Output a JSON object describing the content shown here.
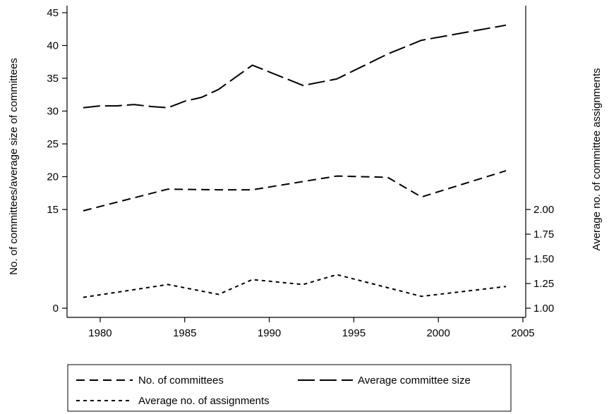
{
  "chart_data": {
    "type": "line",
    "x_axis": {
      "range": [
        1979,
        2005
      ],
      "ticks": [
        1980,
        1985,
        1990,
        1995,
        2000,
        2005
      ],
      "tick_labels": [
        "1980",
        "1985",
        "1990",
        "1995",
        "2000",
        "2005"
      ]
    },
    "y_left": {
      "label": "No. of committees/average size of committees",
      "ticks": [
        0,
        15,
        20,
        25,
        30,
        35,
        40,
        45
      ],
      "tick_labels": [
        "0",
        "15",
        "20",
        "25",
        "30",
        "35",
        "40",
        "45"
      ]
    },
    "y_right": {
      "label": "Average no. of committee assignments",
      "ticks": [
        1.0,
        1.25,
        1.5,
        1.75,
        2.0
      ],
      "tick_labels": [
        "1.00",
        "1.25",
        "1.50",
        "1.75",
        "2.00"
      ]
    },
    "series": [
      {
        "name": "No. of committees",
        "axis": "left",
        "style": "dash",
        "x": [
          1979,
          1984,
          1987,
          1989,
          1994,
          1997,
          1999,
          2004
        ],
        "y": [
          14.8,
          18.1,
          18.0,
          18.0,
          20.1,
          19.9,
          16.9,
          20.9
        ]
      },
      {
        "name": "Average committee size",
        "axis": "left",
        "style": "longdash",
        "x": [
          1979,
          1980,
          1981,
          1982,
          1983,
          1984,
          1985,
          1986,
          1987,
          1989,
          1992,
          1994,
          1997,
          1999,
          2004
        ],
        "y": [
          30.5,
          30.8,
          30.8,
          31.0,
          30.7,
          30.5,
          31.5,
          32.1,
          33.3,
          37.0,
          33.9,
          34.9,
          38.7,
          40.8,
          43.1
        ]
      },
      {
        "name": "Average no. of assignments",
        "axis": "right",
        "style": "shortdash",
        "x": [
          1979,
          1984,
          1987,
          1989,
          1992,
          1994,
          1999,
          2004
        ],
        "y": [
          1.11,
          1.24,
          1.14,
          1.29,
          1.24,
          1.34,
          1.12,
          1.22
        ]
      }
    ],
    "legend": {
      "position": "bottom",
      "entries": [
        "No. of committees",
        "Average committee size",
        "Average no. of assignments"
      ]
    }
  }
}
